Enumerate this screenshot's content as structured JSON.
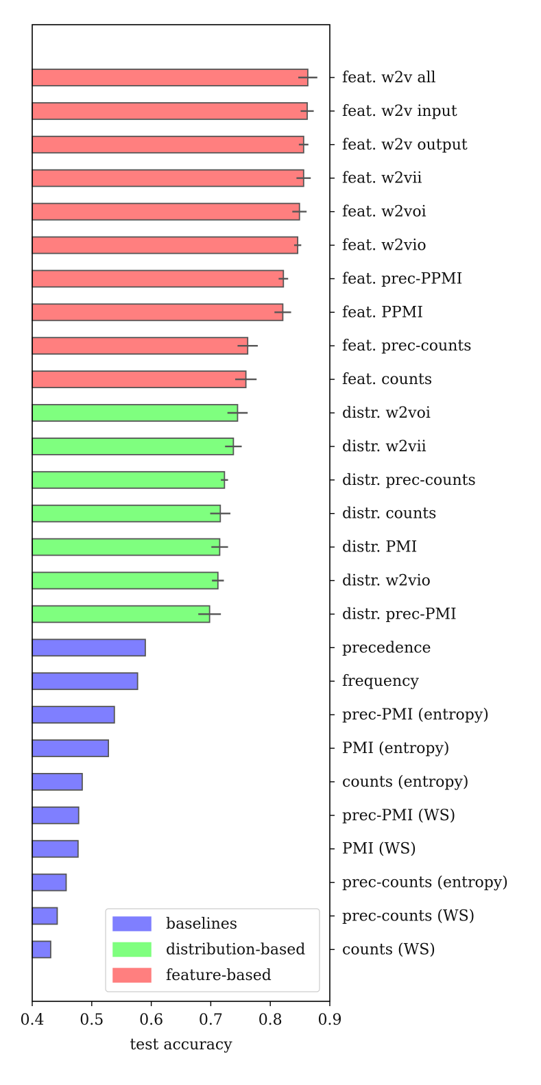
{
  "chart_data": {
    "type": "bar",
    "orientation": "horizontal",
    "title": "",
    "xlabel": "test accuracy",
    "ylabel": "",
    "xlim": [
      0.4,
      0.9
    ],
    "xticks": [
      "0.4",
      "0.5",
      "0.6",
      "0.7",
      "0.8",
      "0.9"
    ],
    "grid": false,
    "legend_position": "lower-right",
    "legend": [
      {
        "label": "baselines",
        "group": "baselines",
        "color": "#7f7fff"
      },
      {
        "label": "distribution-based",
        "group": "distribution",
        "color": "#7fff7f"
      },
      {
        "label": "feature-based",
        "group": "feature",
        "color": "#ff7f7f"
      }
    ],
    "bars": [
      {
        "category": "feat. w2v all",
        "value": 0.863,
        "error": 0.016,
        "group": "feature"
      },
      {
        "category": "feat. w2v input",
        "value": 0.862,
        "error": 0.011,
        "group": "feature"
      },
      {
        "category": "feat. w2v output",
        "value": 0.856,
        "error": 0.008,
        "group": "feature"
      },
      {
        "category": "feat. w2vii",
        "value": 0.856,
        "error": 0.012,
        "group": "feature"
      },
      {
        "category": "feat. w2voi",
        "value": 0.849,
        "error": 0.012,
        "group": "feature"
      },
      {
        "category": "feat. w2vio",
        "value": 0.846,
        "error": 0.006,
        "group": "feature"
      },
      {
        "category": "feat. prec-PPMI",
        "value": 0.822,
        "error": 0.008,
        "group": "feature"
      },
      {
        "category": "feat. PPMI",
        "value": 0.821,
        "error": 0.014,
        "group": "feature"
      },
      {
        "category": "feat. prec-counts",
        "value": 0.762,
        "error": 0.017,
        "group": "feature"
      },
      {
        "category": "feat. counts",
        "value": 0.759,
        "error": 0.018,
        "group": "feature"
      },
      {
        "category": "distr. w2voi",
        "value": 0.745,
        "error": 0.017,
        "group": "distribution"
      },
      {
        "category": "distr. w2vii",
        "value": 0.738,
        "error": 0.014,
        "group": "distribution"
      },
      {
        "category": "distr. prec-counts",
        "value": 0.723,
        "error": 0.006,
        "group": "distribution"
      },
      {
        "category": "distr. counts",
        "value": 0.716,
        "error": 0.017,
        "group": "distribution"
      },
      {
        "category": "distr. PMI",
        "value": 0.715,
        "error": 0.014,
        "group": "distribution"
      },
      {
        "category": "distr. w2vio",
        "value": 0.712,
        "error": 0.01,
        "group": "distribution"
      },
      {
        "category": "distr. prec-PMI",
        "value": 0.698,
        "error": 0.019,
        "group": "distribution"
      },
      {
        "category": "precedence",
        "value": 0.59,
        "group": "baselines"
      },
      {
        "category": "frequency",
        "value": 0.577,
        "group": "baselines"
      },
      {
        "category": "prec-PMI (entropy)",
        "value": 0.538,
        "group": "baselines"
      },
      {
        "category": "PMI (entropy)",
        "value": 0.528,
        "group": "baselines"
      },
      {
        "category": "counts (entropy)",
        "value": 0.484,
        "group": "baselines"
      },
      {
        "category": "prec-PMI (WS)",
        "value": 0.478,
        "group": "baselines"
      },
      {
        "category": "PMI (WS)",
        "value": 0.477,
        "group": "baselines"
      },
      {
        "category": "prec-counts (entropy)",
        "value": 0.457,
        "group": "baselines"
      },
      {
        "category": "prec-counts (WS)",
        "value": 0.442,
        "group": "baselines"
      },
      {
        "category": "counts (WS)",
        "value": 0.431,
        "group": "baselines"
      }
    ]
  }
}
